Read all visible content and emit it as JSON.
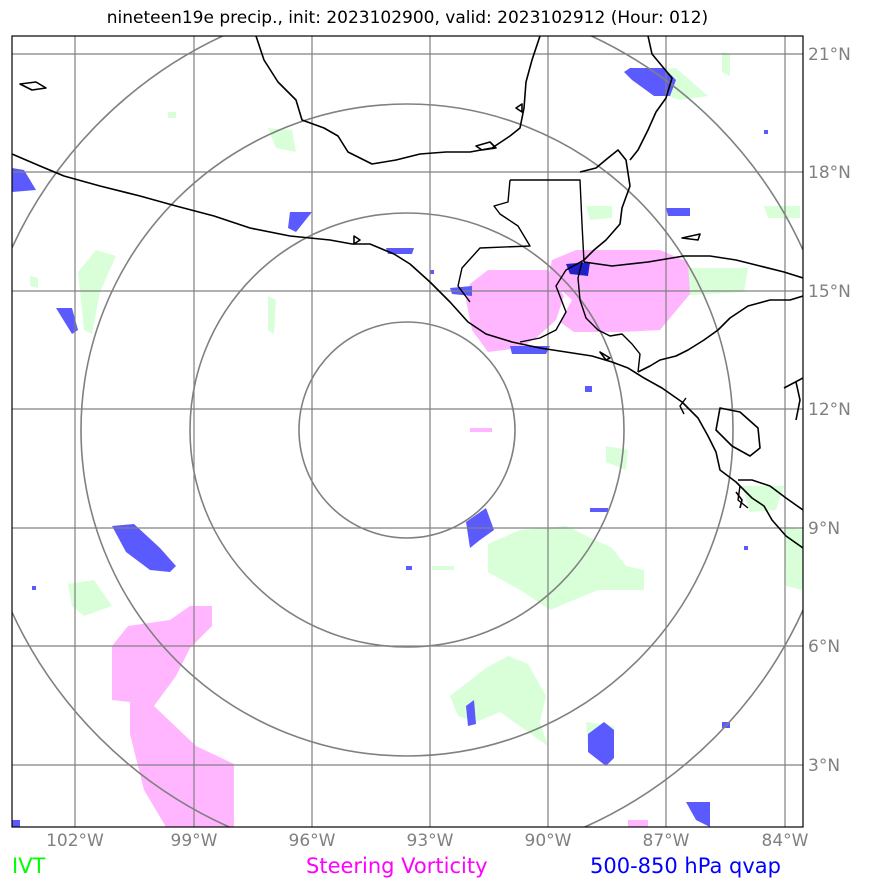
{
  "title": "nineteen19e precip., init: 2023102900, valid: 2023102912 (Hour: 012)",
  "map": {
    "lon_range": [
      -103.0,
      -83.7
    ],
    "lat_range": [
      1.5,
      21.5
    ],
    "lon_ticks": [
      "102°W",
      "99°W",
      "96°W",
      "93°W",
      "90°W",
      "87°W",
      "84°W"
    ],
    "lat_ticks": [
      "21°N",
      "18°N",
      "15°N",
      "12°N",
      "9°N",
      "6°N",
      "3°N"
    ],
    "range_rings": 4
  },
  "legend": {
    "ivt": {
      "label": "IVT",
      "color": "#00ff00"
    },
    "vorticity": {
      "label": "Steering Vorticity",
      "color": "#ff00ff"
    },
    "qvap": {
      "label": "500-850 hPa qvap",
      "color": "#0000ff"
    }
  },
  "colors": {
    "ivt_fill": "#d8ffd8",
    "vorticity_fill": "#ffb6ff",
    "qvap_fill": "#5a5aff",
    "qvap_dark": "#2020c8",
    "grid": "#808080",
    "coast": "#000000"
  }
}
